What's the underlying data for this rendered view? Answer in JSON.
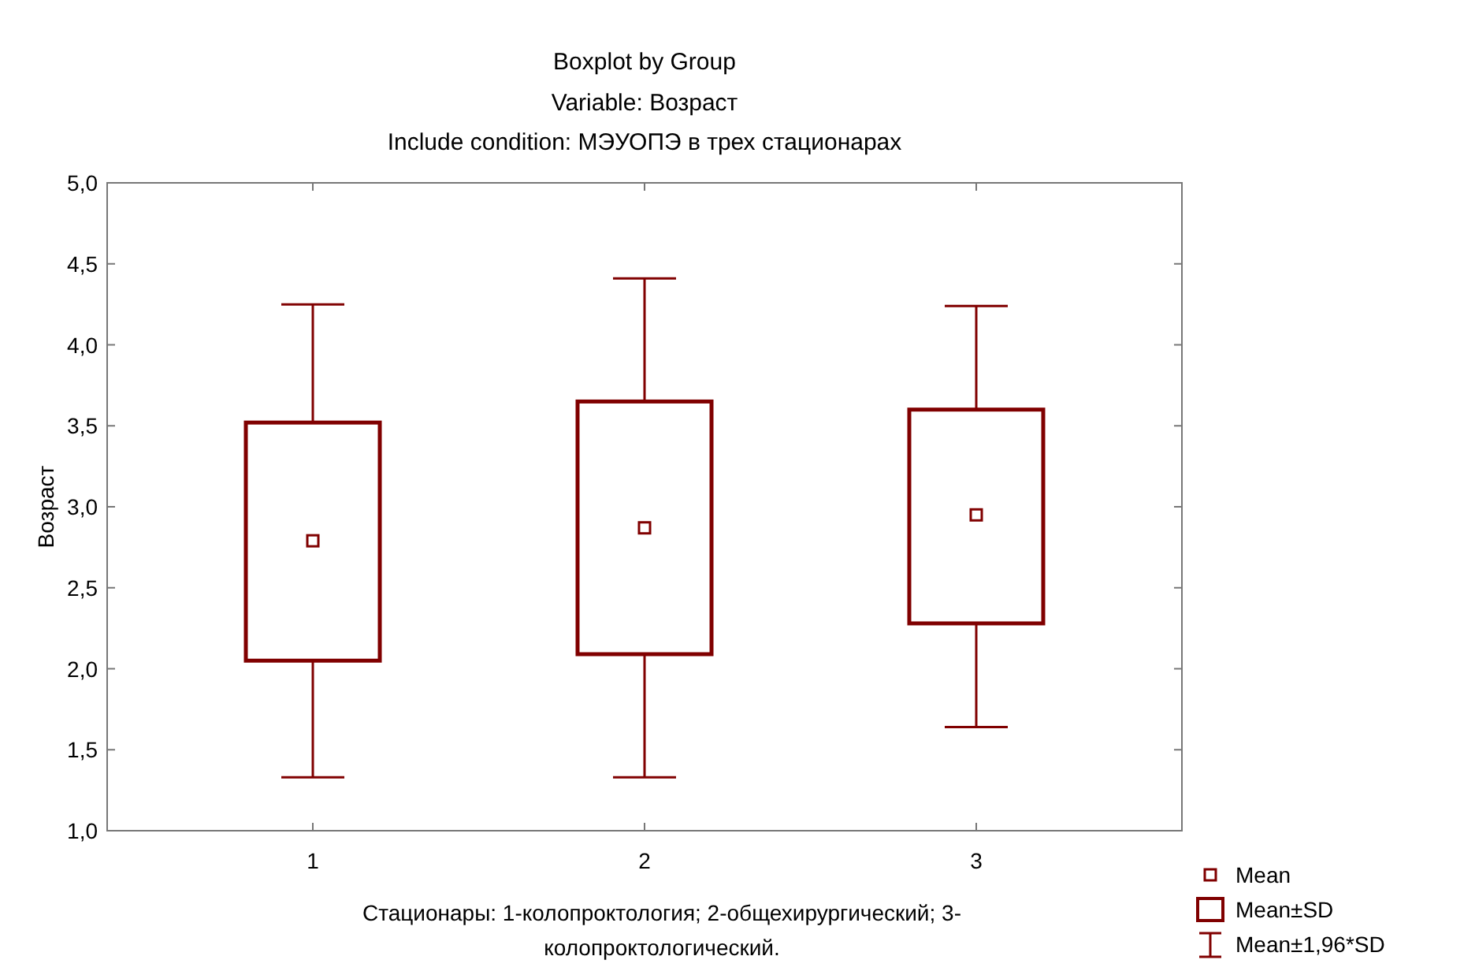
{
  "chart_data": {
    "type": "box",
    "title": "Boxplot by Group",
    "subtitle": "Variable: Возраст\nInclude condition: МЭУОПЭ в трех стационарах",
    "xlabel": "Стационары: 1-колопроктология; 2-общехирургический; 3-\nколопроктологический.",
    "ylabel": "Возраст",
    "categories": [
      "1",
      "2",
      "3"
    ],
    "series": [
      {
        "color": "#800000",
        "boxes": [
          {
            "low": 1.33,
            "q1": 2.05,
            "q3": 3.52,
            "high": 4.25,
            "mean": 2.79
          },
          {
            "low": 1.33,
            "q1": 2.09,
            "q3": 3.65,
            "high": 4.41,
            "mean": 2.87
          },
          {
            "low": 1.64,
            "q1": 2.28,
            "q3": 3.6,
            "high": 4.24,
            "mean": 2.95
          }
        ]
      }
    ],
    "ylim": [
      1,
      5
    ],
    "yticks": [
      {
        "value": 1,
        "label": "1,0"
      },
      {
        "value": 1.5,
        "label": "1,5"
      },
      {
        "value": 2,
        "label": "2,0"
      },
      {
        "value": 2.5,
        "label": "2,5"
      },
      {
        "value": 3,
        "label": "3,0"
      },
      {
        "value": 3.5,
        "label": "3,5"
      },
      {
        "value": 4,
        "label": "4,0"
      },
      {
        "value": 4.5,
        "label": "4,5"
      },
      {
        "value": 5,
        "label": "5,0"
      }
    ],
    "grid": false,
    "marker": "square",
    "annotations": [
      "Mean",
      "Mean±SD",
      "Mean±1,96*SD"
    ]
  }
}
